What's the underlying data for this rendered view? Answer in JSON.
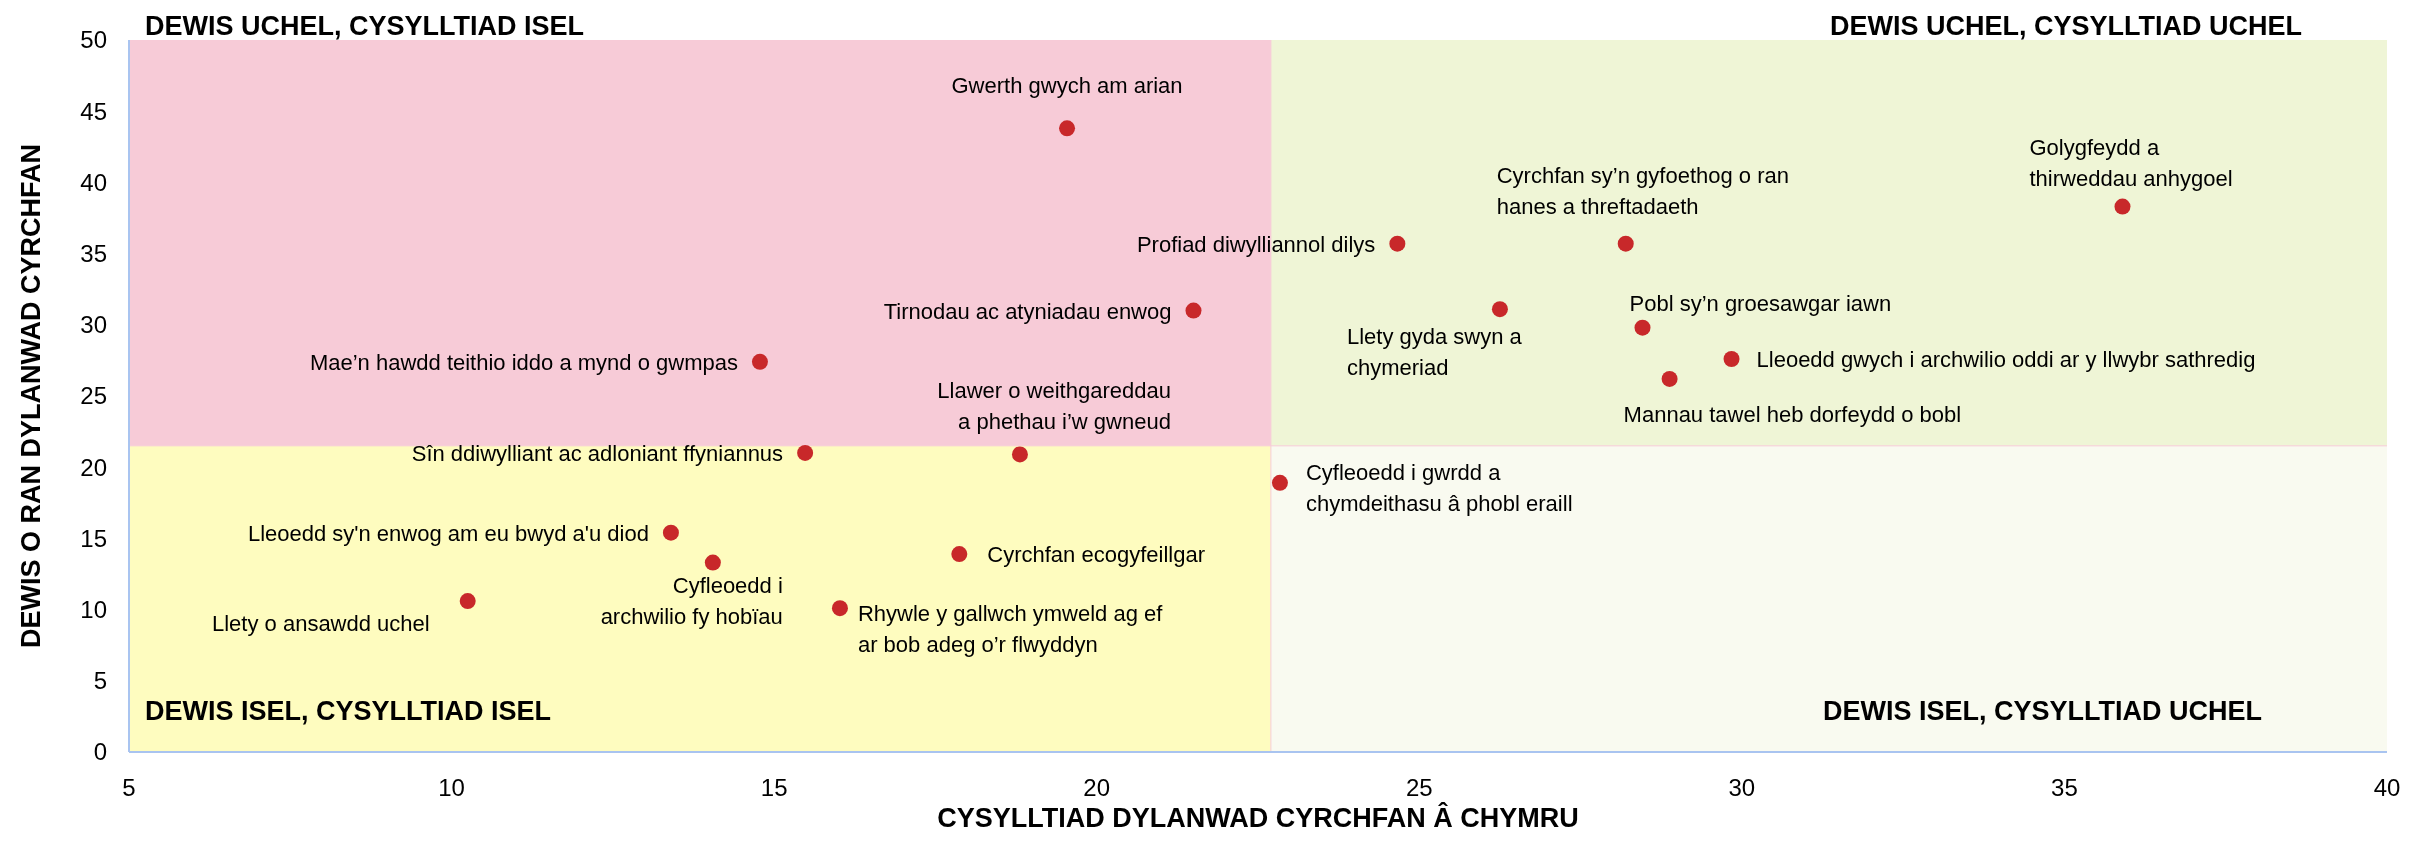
{
  "chart_data": {
    "type": "scatter",
    "xlabel": "CYSYLLTIAD DYLANWAD CYRCHFAN Â CHYMRU",
    "ylabel": "DEWIS O RAN DYLANWAD CYRCHFAN",
    "xlim": [
      5,
      40
    ],
    "xticks": [
      5,
      10,
      15,
      20,
      25,
      30,
      35,
      40
    ],
    "ylim": [
      0,
      50
    ],
    "yticks": [
      0,
      5,
      10,
      15,
      20,
      25,
      30,
      35,
      40,
      45,
      50
    ],
    "grid": false,
    "marker": "circle",
    "bands": [
      {
        "axis": "x",
        "from": 5,
        "to": 22.7,
        "color": "#f7cbd7",
        "label": "DEWIS UCHEL, CYSYLLTIAD ISEL"
      },
      {
        "axis": "x",
        "from": 22.7,
        "to": 40,
        "color": "#eff5d6",
        "label": "DEWIS UCHEL, CYSYLLTIAD UCHEL"
      },
      {
        "axis": "x",
        "from": 5,
        "to": 22.7,
        "color": "#fefcbf",
        "label": "DEWIS ISEL, CYSYLLTIAD ISEL"
      },
      {
        "axis": "x",
        "from": 22.7,
        "to": 40,
        "color": "#f9faf0",
        "label": "DEWIS ISEL, CYSYLLTIAD UCHEL"
      }
    ],
    "series": [
      {
        "color": "#c8282a",
        "x": [
          19.54,
          21.5,
          14.78,
          24.66,
          28.2,
          35.9,
          26.25,
          28.46,
          29.84,
          28.88,
          15.48,
          18.81,
          22.84,
          13.4,
          14.05,
          10.25,
          16.02,
          17.87
        ],
        "values": [
          43.8,
          31.0,
          27.4,
          35.7,
          35.7,
          38.3,
          31.1,
          29.8,
          27.6,
          26.2,
          21.0,
          20.9,
          18.9,
          15.4,
          13.3,
          10.6,
          10.1,
          13.9
        ]
      }
    ],
    "ref_lines": [
      {
        "axis": "x",
        "value": 22.7,
        "color": "#f7cbd7"
      },
      {
        "axis": "y",
        "value": 21.5,
        "color": "#f7cbd7"
      }
    ],
    "annotations": [
      {
        "text": "Gwerth gwych am arian",
        "x": 19.54,
        "y": 43.8
      },
      {
        "text": "Tirnodau ac atyniadau enwog",
        "x": 21.5,
        "y": 31.0
      },
      {
        "text": "Mae’n hawdd teithio iddo a mynd o gwmpas",
        "x": 14.78,
        "y": 27.4
      },
      {
        "text": "Profiad diwylliannol dilys",
        "x": 24.66,
        "y": 35.7
      },
      {
        "text": "Cyrchfan sy’n gyfoethog o ran\nhanes a threftadaeth",
        "x": 28.2,
        "y": 35.7
      },
      {
        "text": "Golygfeydd a\nthirweddau anhygoel",
        "x": 35.9,
        "y": 38.3
      },
      {
        "text": "Llety gyda swyn a\nchymeriad",
        "x": 26.25,
        "y": 31.1
      },
      {
        "text": "Pobl sy’n groesawgar iawn",
        "x": 28.46,
        "y": 29.8
      },
      {
        "text": "Lleoedd gwych i archwilio oddi ar y llwybr sathredig",
        "x": 29.84,
        "y": 27.6
      },
      {
        "text": "Mannau tawel heb dorfeydd o bobl",
        "x": 28.88,
        "y": 26.2
      },
      {
        "text": "Sîn ddiwylliant ac adloniant ffyniannus",
        "x": 15.48,
        "y": 21.0
      },
      {
        "text": "Llawer o weithgareddau\na phethau i’w gwneud",
        "x": 18.81,
        "y": 20.9
      },
      {
        "text": "Cyfleoedd i gwrdd a\nchymdeithasu â phobl eraill",
        "x": 22.84,
        "y": 18.9
      },
      {
        "text": "Lleoedd sy'n enwog am eu bwyd a'u diod",
        "x": 13.4,
        "y": 15.4
      },
      {
        "text": "Cyfleoedd i\narchwilio fy hobïau",
        "x": 14.05,
        "y": 13.3
      },
      {
        "text": "Llety o ansawdd uchel",
        "x": 10.25,
        "y": 10.6
      },
      {
        "text": "Rhywle y gallwch ymweld ag ef\nar bob adeg o’r flwyddyn",
        "x": 16.02,
        "y": 10.1
      },
      {
        "text": "Cyrchfan ecogyfeillgar",
        "x": 17.87,
        "y": 13.9
      }
    ]
  }
}
